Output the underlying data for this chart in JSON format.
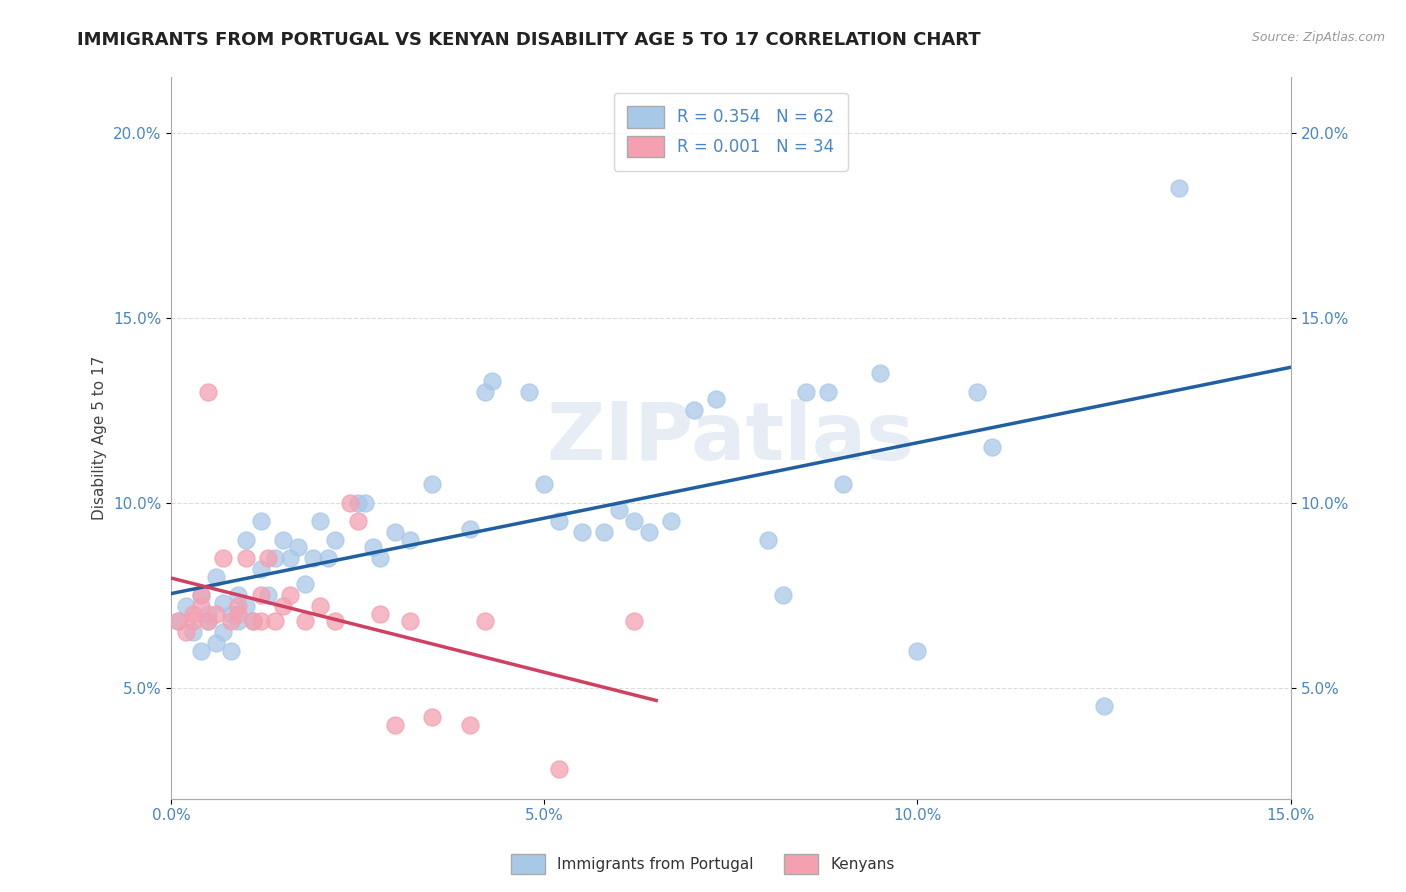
{
  "title": "IMMIGRANTS FROM PORTUGAL VS KENYAN DISABILITY AGE 5 TO 17 CORRELATION CHART",
  "source_text": "Source: ZipAtlas.com",
  "ylabel": "Disability Age 5 to 17",
  "xlim": [
    0.0,
    0.15
  ],
  "ylim": [
    0.02,
    0.215
  ],
  "xticks": [
    0.0,
    0.05,
    0.1,
    0.15
  ],
  "xticklabels": [
    "0.0%",
    "5.0%",
    "10.0%",
    "15.0%"
  ],
  "yticks": [
    0.05,
    0.1,
    0.15,
    0.2
  ],
  "yticklabels": [
    "5.0%",
    "10.0%",
    "15.0%",
    "20.0%"
  ],
  "legend_r1": "R = 0.354   N = 62",
  "legend_r2": "R = 0.001   N = 34",
  "blue_color": "#a8c8e8",
  "pink_color": "#f4a0b0",
  "blue_line_color": "#2060a0",
  "pink_line_color": "#d04060",
  "background_color": "#ffffff",
  "grid_color": "#cccccc",
  "watermark": "ZIPatlas",
  "title_fontsize": 13,
  "axis_label_fontsize": 11,
  "tick_fontsize": 11,
  "blue_scatter": [
    [
      0.001,
      0.068
    ],
    [
      0.002,
      0.072
    ],
    [
      0.003,
      0.065
    ],
    [
      0.004,
      0.06
    ],
    [
      0.004,
      0.075
    ],
    [
      0.005,
      0.07
    ],
    [
      0.005,
      0.068
    ],
    [
      0.006,
      0.062
    ],
    [
      0.006,
      0.08
    ],
    [
      0.007,
      0.073
    ],
    [
      0.007,
      0.065
    ],
    [
      0.008,
      0.07
    ],
    [
      0.008,
      0.06
    ],
    [
      0.009,
      0.068
    ],
    [
      0.009,
      0.075
    ],
    [
      0.01,
      0.09
    ],
    [
      0.01,
      0.072
    ],
    [
      0.011,
      0.068
    ],
    [
      0.012,
      0.082
    ],
    [
      0.012,
      0.095
    ],
    [
      0.013,
      0.075
    ],
    [
      0.014,
      0.085
    ],
    [
      0.015,
      0.09
    ],
    [
      0.016,
      0.085
    ],
    [
      0.017,
      0.088
    ],
    [
      0.018,
      0.078
    ],
    [
      0.019,
      0.085
    ],
    [
      0.02,
      0.095
    ],
    [
      0.021,
      0.085
    ],
    [
      0.022,
      0.09
    ],
    [
      0.025,
      0.1
    ],
    [
      0.026,
      0.1
    ],
    [
      0.027,
      0.088
    ],
    [
      0.028,
      0.085
    ],
    [
      0.03,
      0.092
    ],
    [
      0.032,
      0.09
    ],
    [
      0.035,
      0.105
    ],
    [
      0.04,
      0.093
    ],
    [
      0.042,
      0.13
    ],
    [
      0.043,
      0.133
    ],
    [
      0.048,
      0.13
    ],
    [
      0.05,
      0.105
    ],
    [
      0.052,
      0.095
    ],
    [
      0.055,
      0.092
    ],
    [
      0.058,
      0.092
    ],
    [
      0.06,
      0.098
    ],
    [
      0.062,
      0.095
    ],
    [
      0.064,
      0.092
    ],
    [
      0.067,
      0.095
    ],
    [
      0.07,
      0.125
    ],
    [
      0.073,
      0.128
    ],
    [
      0.08,
      0.09
    ],
    [
      0.082,
      0.075
    ],
    [
      0.085,
      0.13
    ],
    [
      0.088,
      0.13
    ],
    [
      0.09,
      0.105
    ],
    [
      0.095,
      0.135
    ],
    [
      0.1,
      0.06
    ],
    [
      0.108,
      0.13
    ],
    [
      0.11,
      0.115
    ],
    [
      0.125,
      0.045
    ],
    [
      0.135,
      0.185
    ]
  ],
  "pink_scatter": [
    [
      0.001,
      0.068
    ],
    [
      0.002,
      0.065
    ],
    [
      0.003,
      0.07
    ],
    [
      0.003,
      0.068
    ],
    [
      0.004,
      0.072
    ],
    [
      0.004,
      0.075
    ],
    [
      0.005,
      0.13
    ],
    [
      0.005,
      0.068
    ],
    [
      0.006,
      0.07
    ],
    [
      0.007,
      0.085
    ],
    [
      0.008,
      0.068
    ],
    [
      0.009,
      0.072
    ],
    [
      0.009,
      0.07
    ],
    [
      0.01,
      0.085
    ],
    [
      0.011,
      0.068
    ],
    [
      0.012,
      0.075
    ],
    [
      0.012,
      0.068
    ],
    [
      0.013,
      0.085
    ],
    [
      0.014,
      0.068
    ],
    [
      0.015,
      0.072
    ],
    [
      0.016,
      0.075
    ],
    [
      0.018,
      0.068
    ],
    [
      0.02,
      0.072
    ],
    [
      0.022,
      0.068
    ],
    [
      0.024,
      0.1
    ],
    [
      0.025,
      0.095
    ],
    [
      0.028,
      0.07
    ],
    [
      0.03,
      0.04
    ],
    [
      0.032,
      0.068
    ],
    [
      0.035,
      0.042
    ],
    [
      0.04,
      0.04
    ],
    [
      0.042,
      0.068
    ],
    [
      0.052,
      0.028
    ],
    [
      0.062,
      0.068
    ]
  ]
}
